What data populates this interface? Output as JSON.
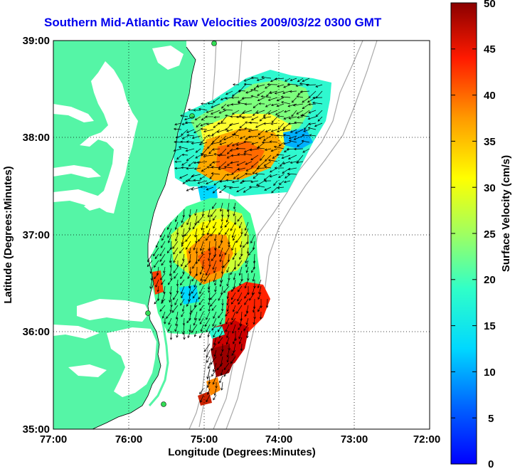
{
  "title": "Southern Mid-Atlantic Raw Velocities 2009/03/22 0300 GMT",
  "map": {
    "xlabel": "Longitude (Degrees:Minutes)",
    "ylabel": "Latitude (Degrees:Minutes)",
    "x_ticks": [
      "77:00",
      "76:00",
      "75:00",
      "74:00",
      "73:00",
      "72:00"
    ],
    "y_ticks": [
      "39:00",
      "38:00",
      "37:00",
      "36:00",
      "35:00"
    ],
    "lon_range": [
      -77,
      -72
    ],
    "lat_range": [
      35,
      39
    ],
    "grid": "dotted"
  },
  "colorbar": {
    "label": "Surface Velocity (cm/s)",
    "ticks": [
      "50",
      "45",
      "40",
      "35",
      "30",
      "25",
      "20",
      "15",
      "10",
      "5",
      "0"
    ],
    "range": [
      0,
      50
    ],
    "colormap": "jet"
  },
  "colors": {
    "land": "#55f5a6",
    "title": "#0000ee",
    "bathymetry": "#a9a9a9"
  }
}
